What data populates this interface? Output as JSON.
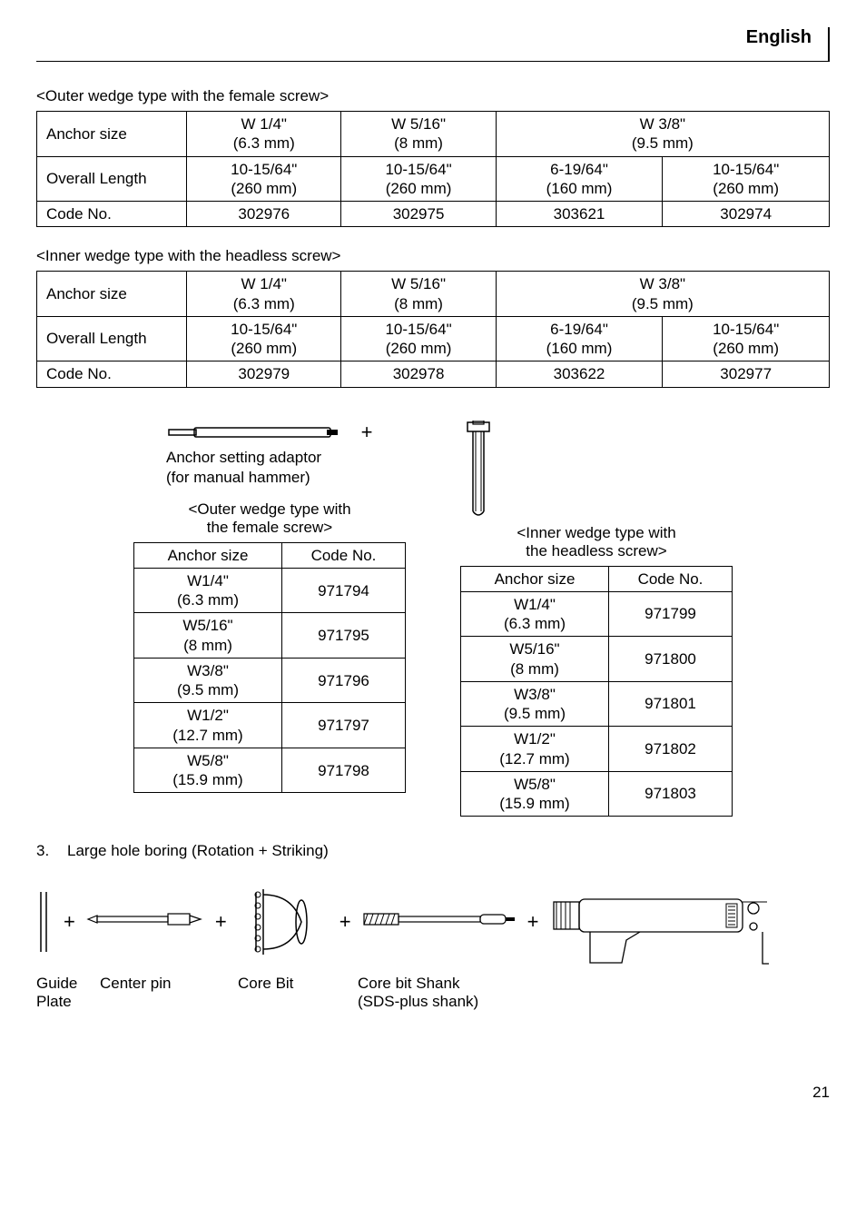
{
  "header": {
    "lang": "English"
  },
  "table1": {
    "title": "<Outer wedge type with the female screw>",
    "rows": [
      {
        "label": "Anchor size",
        "cells": [
          "W 1/4\"\n(6.3 mm)",
          "W 5/16\"\n(8 mm)",
          "W 3/8\"\n(9.5 mm)"
        ],
        "spanLast": 2
      },
      {
        "label": "Overall Length",
        "cells": [
          "10-15/64\"\n(260 mm)",
          "10-15/64\"\n(260 mm)",
          "6-19/64\"\n(160 mm)",
          "10-15/64\"\n(260 mm)"
        ]
      },
      {
        "label": "Code No.",
        "cells": [
          "302976",
          "302975",
          "303621",
          "302974"
        ]
      }
    ]
  },
  "table2": {
    "title": "<Inner wedge type with the headless screw>",
    "rows": [
      {
        "label": "Anchor size",
        "cells": [
          "W 1/4\"\n(6.3 mm)",
          "W 5/16\"\n(8 mm)",
          "W 3/8\"\n(9.5 mm)"
        ],
        "spanLast": 2
      },
      {
        "label": "Overall Length",
        "cells": [
          "10-15/64\"\n(260 mm)",
          "10-15/64\"\n(260 mm)",
          "6-19/64\"\n(160 mm)",
          "10-15/64\"\n(260 mm)"
        ]
      },
      {
        "label": "Code No.",
        "cells": [
          "302979",
          "302978",
          "303622",
          "302977"
        ]
      }
    ]
  },
  "adaptor": {
    "caption1": "Anchor setting adaptor",
    "caption2": "(for manual hammer)"
  },
  "leftSmall": {
    "title1": "<Outer wedge type with",
    "title2": "the female screw>",
    "header": [
      "Anchor size",
      "Code No."
    ],
    "rows": [
      [
        "W1/4\"\n(6.3 mm)",
        "971794"
      ],
      [
        "W5/16\"\n(8 mm)",
        "971795"
      ],
      [
        "W3/8\"\n(9.5 mm)",
        "971796"
      ],
      [
        "W1/2\"\n(12.7 mm)",
        "971797"
      ],
      [
        "W5/8\"\n(15.9 mm)",
        "971798"
      ]
    ]
  },
  "rightSmall": {
    "title1": "<Inner wedge type with",
    "title2": "the headless screw>",
    "header": [
      "Anchor size",
      "Code No."
    ],
    "rows": [
      [
        "W1/4\"\n(6.3 mm)",
        "971799"
      ],
      [
        "W5/16\"\n(8 mm)",
        "971800"
      ],
      [
        "W3/8\"\n(9.5 mm)",
        "971801"
      ],
      [
        "W1/2\"\n(12.7 mm)",
        "971802"
      ],
      [
        "W5/8\"\n(15.9 mm)",
        "971803"
      ]
    ]
  },
  "section3": {
    "num": "3.",
    "title": "Large hole boring (Rotation + Striking)"
  },
  "assemblyLabels": {
    "guidePlate1": "Guide",
    "guidePlate2": "Plate",
    "centerPin": "Center pin",
    "coreBit": "Core Bit",
    "shank1": "Core bit Shank",
    "shank2": "(SDS-plus shank)"
  },
  "pageNum": "21",
  "style": {
    "stroke": "#000000",
    "bg": "#ffffff"
  }
}
